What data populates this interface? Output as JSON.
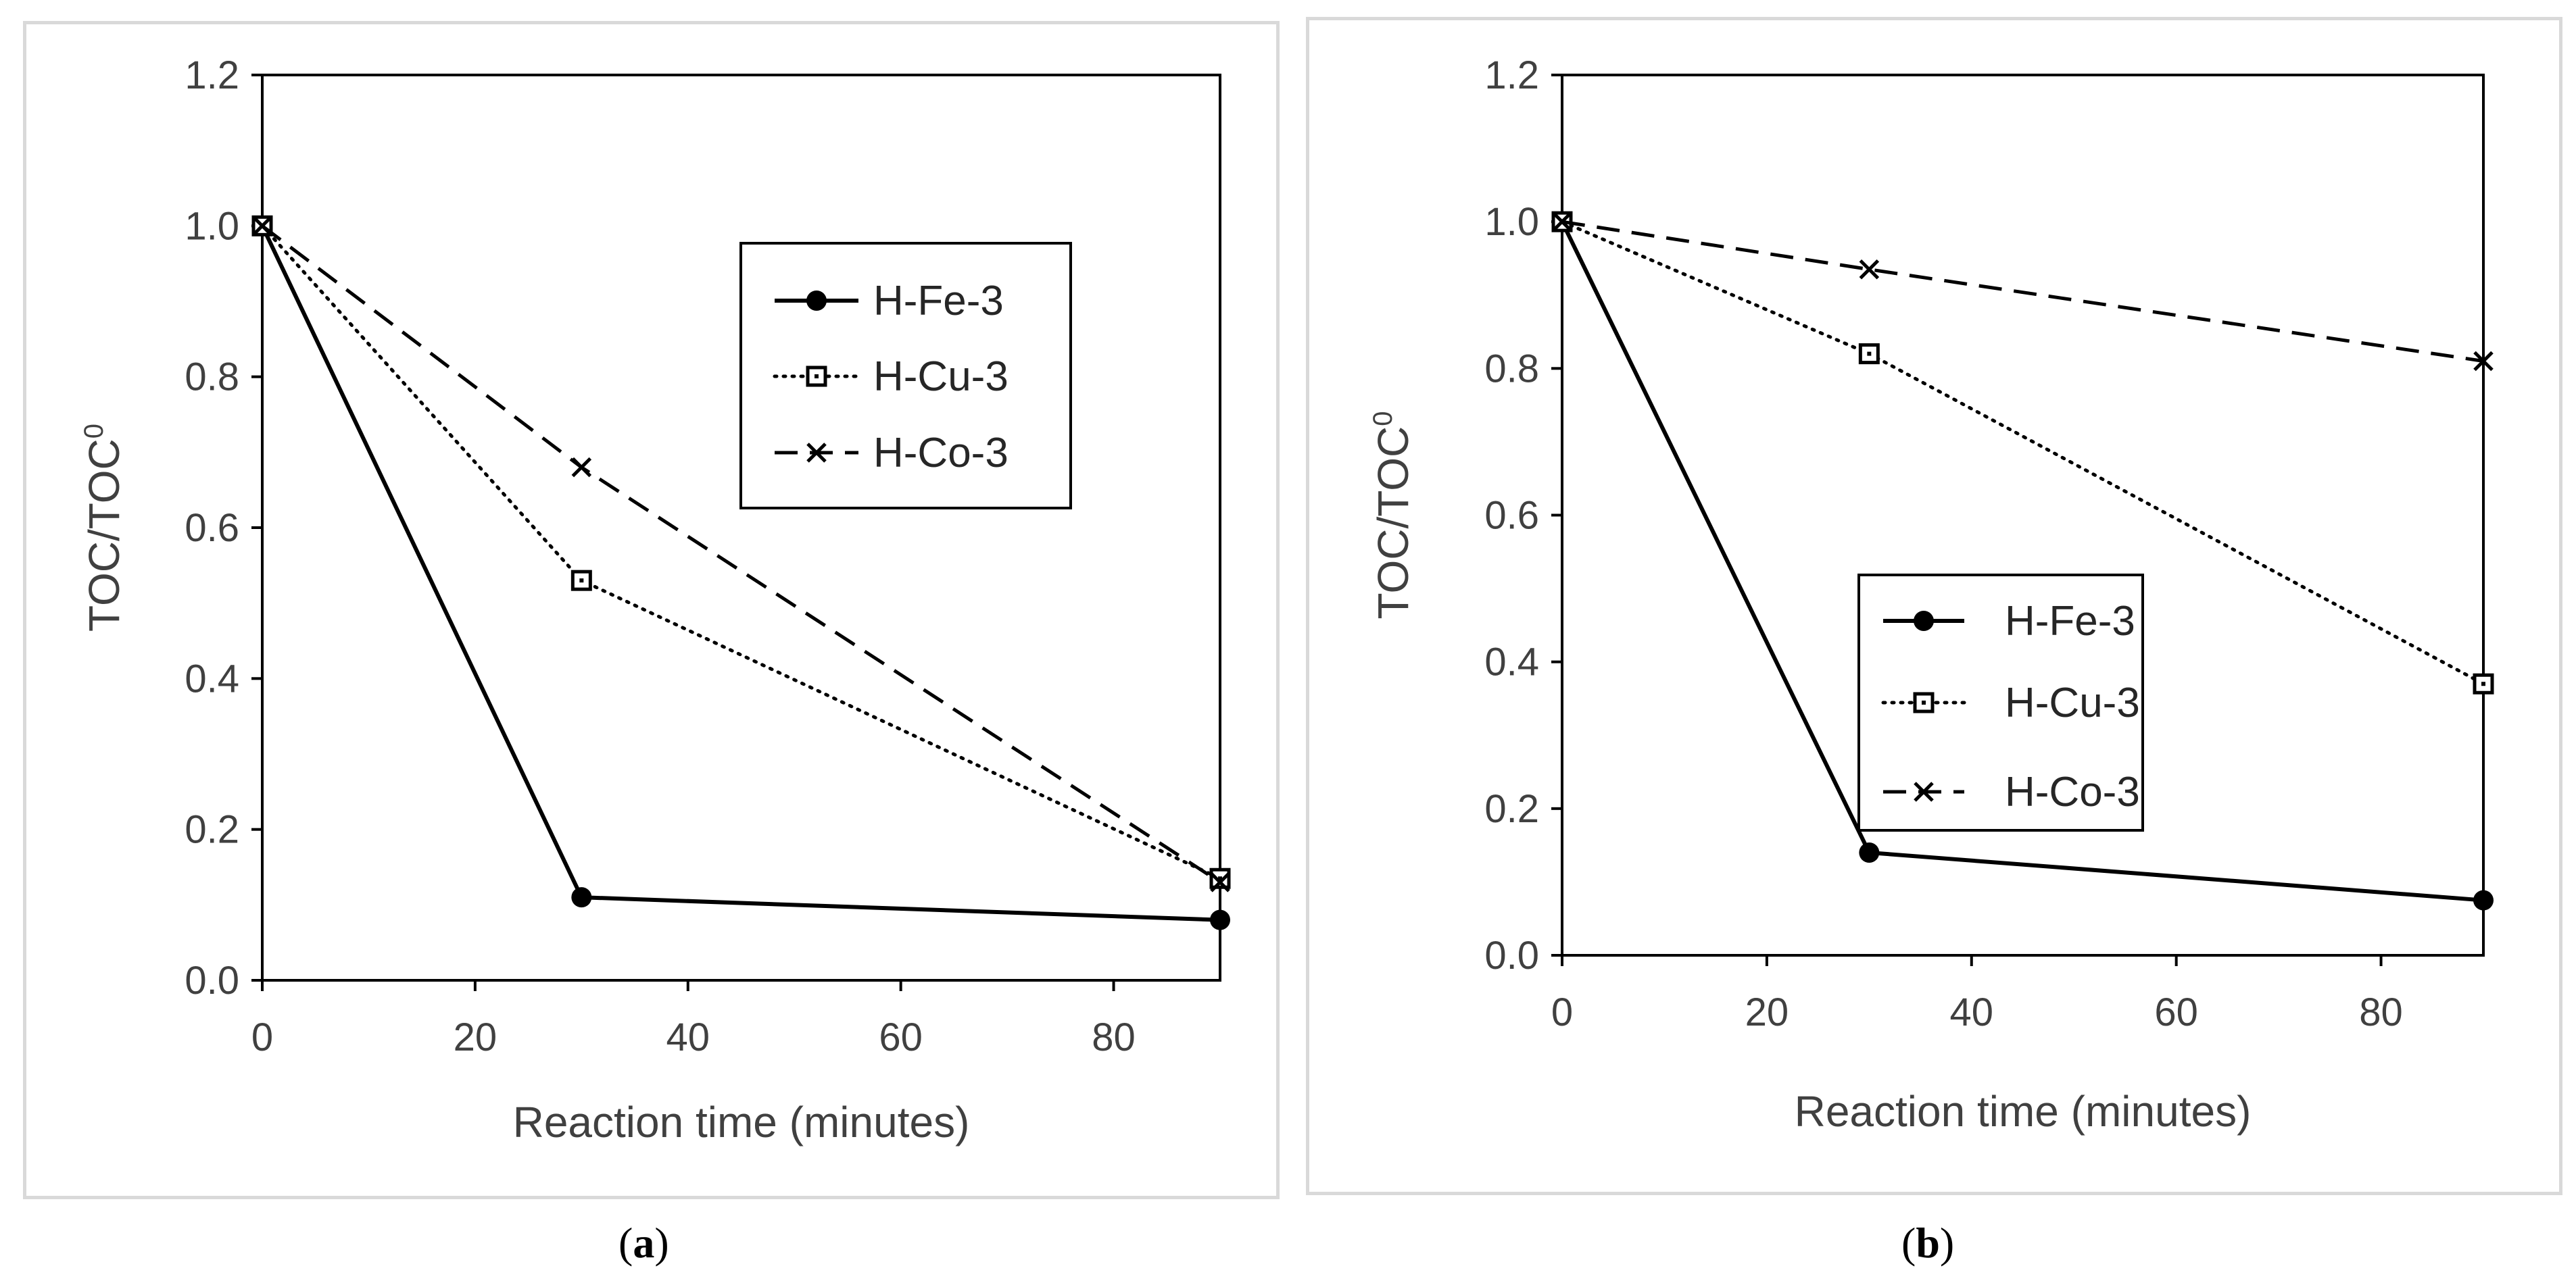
{
  "chart_data": [
    {
      "panel": "a",
      "caption_letter": "a",
      "type": "line",
      "xlabel": "Reaction time (minutes)",
      "ylabel": "TOC/TOC",
      "ylabel_sup": "0",
      "xlim": [
        0,
        90
      ],
      "ylim": [
        0.0,
        1.2
      ],
      "xticks": [
        "0",
        "20",
        "40",
        "60",
        "80"
      ],
      "yticks": [
        "0.0",
        "0.2",
        "0.4",
        "0.6",
        "0.8",
        "1.0",
        "1.2"
      ],
      "legend_placement": "upper-right",
      "series": [
        {
          "name": "H-Fe-3",
          "marker": "circle",
          "line": "solid",
          "x": [
            0,
            30,
            90
          ],
          "y": [
            1.0,
            0.11,
            0.08
          ]
        },
        {
          "name": "H-Cu-3",
          "marker": "square",
          "line": "dotted",
          "x": [
            0,
            30,
            90
          ],
          "y": [
            1.0,
            0.53,
            0.135
          ]
        },
        {
          "name": "H-Co-3",
          "marker": "x",
          "line": "dashed",
          "x": [
            0,
            30,
            90
          ],
          "y": [
            1.0,
            0.68,
            0.13
          ]
        }
      ]
    },
    {
      "panel": "b",
      "caption_letter": "b",
      "type": "line",
      "xlabel": "Reaction time (minutes)",
      "ylabel": "TOC/TOC",
      "ylabel_sup": "0",
      "xlim": [
        0,
        90
      ],
      "ylim": [
        0.0,
        1.2
      ],
      "xticks": [
        "0",
        "20",
        "40",
        "60",
        "80"
      ],
      "yticks": [
        "0.0",
        "0.2",
        "0.4",
        "0.6",
        "0.8",
        "1.0",
        "1.2"
      ],
      "legend_placement": "lower-center",
      "series": [
        {
          "name": "H-Fe-3",
          "marker": "circle",
          "line": "solid",
          "x": [
            0,
            30,
            90
          ],
          "y": [
            1.0,
            0.14,
            0.075
          ]
        },
        {
          "name": "H-Cu-3",
          "marker": "square",
          "line": "dotted",
          "x": [
            0,
            30,
            90
          ],
          "y": [
            1.0,
            0.82,
            0.37
          ]
        },
        {
          "name": "H-Co-3",
          "marker": "x",
          "line": "dashed",
          "x": [
            0,
            30,
            90
          ],
          "y": [
            1.0,
            0.935,
            0.81
          ]
        }
      ]
    }
  ]
}
